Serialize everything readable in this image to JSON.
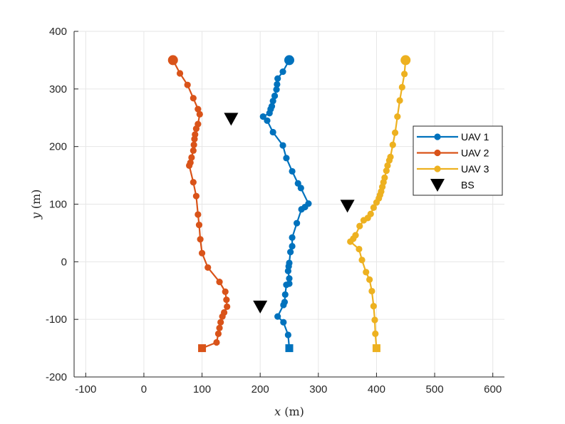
{
  "chart_data": {
    "type": "line",
    "xlabel_var": "x",
    "xlabel_unit": "(m)",
    "ylabel_var": "y",
    "ylabel_unit": "(m)",
    "xlim": [
      -120,
      620
    ],
    "ylim": [
      -200,
      400
    ],
    "xticks": [
      -100,
      0,
      100,
      200,
      300,
      400,
      500,
      600
    ],
    "yticks": [
      -200,
      -100,
      0,
      100,
      200,
      300,
      400
    ],
    "xtick_labels": [
      "-100",
      "0",
      "100",
      "200",
      "300",
      "400",
      "500",
      "600"
    ],
    "ytick_labels": [
      "-200",
      "-100",
      "0",
      "100",
      "200",
      "300",
      "400"
    ],
    "grid": true,
    "legend_position": "right",
    "series": [
      {
        "name": "UAV 1",
        "color": "#0072BD",
        "points": [
          [
            250,
            350
          ],
          [
            239,
            330
          ],
          [
            230,
            318
          ],
          [
            229,
            308
          ],
          [
            228,
            299
          ],
          [
            225,
            288
          ],
          [
            222,
            279
          ],
          [
            220,
            270
          ],
          [
            218,
            265
          ],
          [
            216,
            258
          ],
          [
            205,
            252
          ],
          [
            212,
            245
          ],
          [
            222,
            225
          ],
          [
            239,
            202
          ],
          [
            245,
            180
          ],
          [
            255,
            157
          ],
          [
            265,
            136
          ],
          [
            270,
            128
          ],
          [
            283,
            101
          ],
          [
            277,
            95
          ],
          [
            271,
            91
          ],
          [
            263,
            67
          ],
          [
            255,
            42
          ],
          [
            255,
            27
          ],
          [
            252,
            17
          ],
          [
            250,
            -2
          ],
          [
            249,
            -8
          ],
          [
            248,
            -16
          ],
          [
            250,
            -29
          ],
          [
            250,
            -38
          ],
          [
            245,
            -40
          ],
          [
            243,
            -57
          ],
          [
            242,
            -70
          ],
          [
            240,
            -75
          ],
          [
            230,
            -95
          ],
          [
            240,
            -105
          ],
          [
            248,
            -127
          ]
        ],
        "start_marker": "circle",
        "end": [
          250,
          -150
        ],
        "end_marker": "square"
      },
      {
        "name": "UAV 2",
        "color": "#D95319",
        "points": [
          [
            50,
            350
          ],
          [
            62,
            327
          ],
          [
            75,
            307
          ],
          [
            85,
            284
          ],
          [
            93,
            265
          ],
          [
            96,
            256
          ],
          [
            93,
            239
          ],
          [
            90,
            231
          ],
          [
            88,
            221
          ],
          [
            87,
            213
          ],
          [
            86,
            203
          ],
          [
            85,
            193
          ],
          [
            82,
            181
          ],
          [
            80,
            172
          ],
          [
            78,
            167
          ],
          [
            85,
            138
          ],
          [
            90,
            114
          ],
          [
            93,
            82
          ],
          [
            95,
            64
          ],
          [
            97,
            39
          ],
          [
            100,
            15
          ],
          [
            110,
            -10
          ],
          [
            130,
            -35
          ],
          [
            140,
            -52
          ],
          [
            142,
            -66
          ],
          [
            143,
            -78
          ],
          [
            138,
            -88
          ],
          [
            135,
            -95
          ],
          [
            132,
            -105
          ],
          [
            130,
            -115
          ],
          [
            128,
            -125
          ],
          [
            125,
            -140
          ]
        ],
        "start_marker": "circle",
        "end": [
          100,
          -150
        ],
        "end_marker": "square"
      },
      {
        "name": "UAV 3",
        "color": "#EDB120",
        "points": [
          [
            450,
            350
          ],
          [
            448,
            326
          ],
          [
            444,
            303
          ],
          [
            440,
            280
          ],
          [
            436,
            252
          ],
          [
            432,
            224
          ],
          [
            428,
            203
          ],
          [
            424,
            182
          ],
          [
            422,
            176
          ],
          [
            419,
            167
          ],
          [
            417,
            158
          ],
          [
            414,
            146
          ],
          [
            412,
            138
          ],
          [
            410,
            130
          ],
          [
            408,
            122
          ],
          [
            406,
            116
          ],
          [
            404,
            110
          ],
          [
            400,
            103
          ],
          [
            395,
            94
          ],
          [
            390,
            83
          ],
          [
            385,
            76
          ],
          [
            378,
            72
          ],
          [
            371,
            62
          ],
          [
            364,
            46
          ],
          [
            360,
            40
          ],
          [
            355,
            35
          ],
          [
            370,
            22
          ],
          [
            375,
            3
          ],
          [
            382,
            -18
          ],
          [
            388,
            -31
          ],
          [
            392,
            -51
          ],
          [
            395,
            -77
          ],
          [
            397,
            -101
          ],
          [
            398,
            -125
          ]
        ],
        "start_marker": "circle",
        "end": [
          400,
          -150
        ],
        "end_marker": "square"
      },
      {
        "name": "BS",
        "color": "#000000",
        "marker": "triangle-down",
        "points": [
          [
            150,
            248
          ],
          [
            350,
            97
          ],
          [
            200,
            -78
          ]
        ]
      }
    ]
  }
}
